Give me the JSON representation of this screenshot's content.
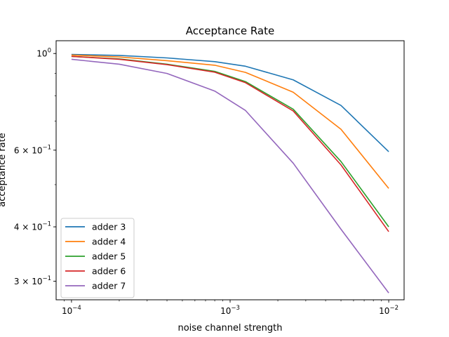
{
  "chart_data": {
    "type": "line",
    "title": "Acceptance Rate",
    "xlabel": "noise channel strength",
    "ylabel": "acceptance rate",
    "xscale": "log",
    "yscale": "log",
    "xlim": [
      8e-05,
      0.0125
    ],
    "ylim": [
      0.272,
      1.07
    ],
    "x": [
      0.0001,
      0.0002,
      0.0004,
      0.0008,
      0.00125,
      0.0025,
      0.005,
      0.01
    ],
    "xticks": [
      {
        "value": 0.0001,
        "base": "10",
        "exp": "−4"
      },
      {
        "value": 0.001,
        "base": "10",
        "exp": "−3"
      },
      {
        "value": 0.01,
        "base": "10",
        "exp": "−2"
      }
    ],
    "yticks": [
      {
        "value": 1.0,
        "mant": "",
        "base": "10",
        "exp": "0"
      },
      {
        "value": 0.6,
        "mant": "6 × ",
        "base": "10",
        "exp": "−1"
      },
      {
        "value": 0.4,
        "mant": "4 × ",
        "base": "10",
        "exp": "−1"
      },
      {
        "value": 0.3,
        "mant": "3 × ",
        "base": "10",
        "exp": "−1"
      }
    ],
    "grid": false,
    "legend_position": "lower-left",
    "series": [
      {
        "name": "adder 3",
        "color": "#1f77b4",
        "values": [
          0.995,
          0.99,
          0.977,
          0.958,
          0.935,
          0.87,
          0.76,
          0.595
        ]
      },
      {
        "name": "adder 4",
        "color": "#ff7f0e",
        "values": [
          0.992,
          0.982,
          0.963,
          0.94,
          0.905,
          0.815,
          0.67,
          0.49
        ]
      },
      {
        "name": "adder 5",
        "color": "#2ca02c",
        "values": [
          0.985,
          0.972,
          0.945,
          0.91,
          0.862,
          0.745,
          0.565,
          0.4
        ]
      },
      {
        "name": "adder 6",
        "color": "#d62728",
        "values": [
          0.985,
          0.97,
          0.943,
          0.906,
          0.857,
          0.738,
          0.555,
          0.39
        ]
      },
      {
        "name": "adder 7",
        "color": "#9467bd",
        "values": [
          0.97,
          0.945,
          0.9,
          0.82,
          0.74,
          0.56,
          0.395,
          0.282
        ]
      }
    ]
  }
}
